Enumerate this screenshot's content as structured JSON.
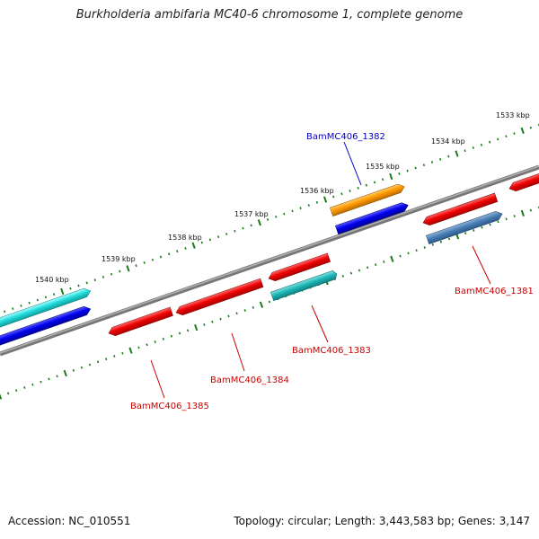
{
  "title": "Burkholderia ambifaria MC40-6 chromosome 1, complete genome",
  "footer": {
    "accession": "Accession: NC_010551",
    "summary": "Topology: circular; Length: 3,443,583 bp; Genes: 3,147"
  },
  "colors": {
    "backbone": "#808080",
    "ticks": "#1a7a1a",
    "label_forward": "#0000cc",
    "label_reverse": "#cc0000"
  },
  "scale_labels": [
    "1533 kbp",
    "1534 kbp",
    "1535 kbp",
    "1536 kbp",
    "1537 kbp",
    "1538 kbp",
    "1539 kbp",
    "1540 kbp"
  ],
  "gene_labels": [
    {
      "name": "BamMC406_1382",
      "strand": "forward"
    },
    {
      "name": "BamMC406_1381",
      "strand": "reverse"
    },
    {
      "name": "BamMC406_1383",
      "strand": "reverse"
    },
    {
      "name": "BamMC406_1384",
      "strand": "reverse"
    },
    {
      "name": "BamMC406_1385",
      "strand": "reverse"
    }
  ]
}
